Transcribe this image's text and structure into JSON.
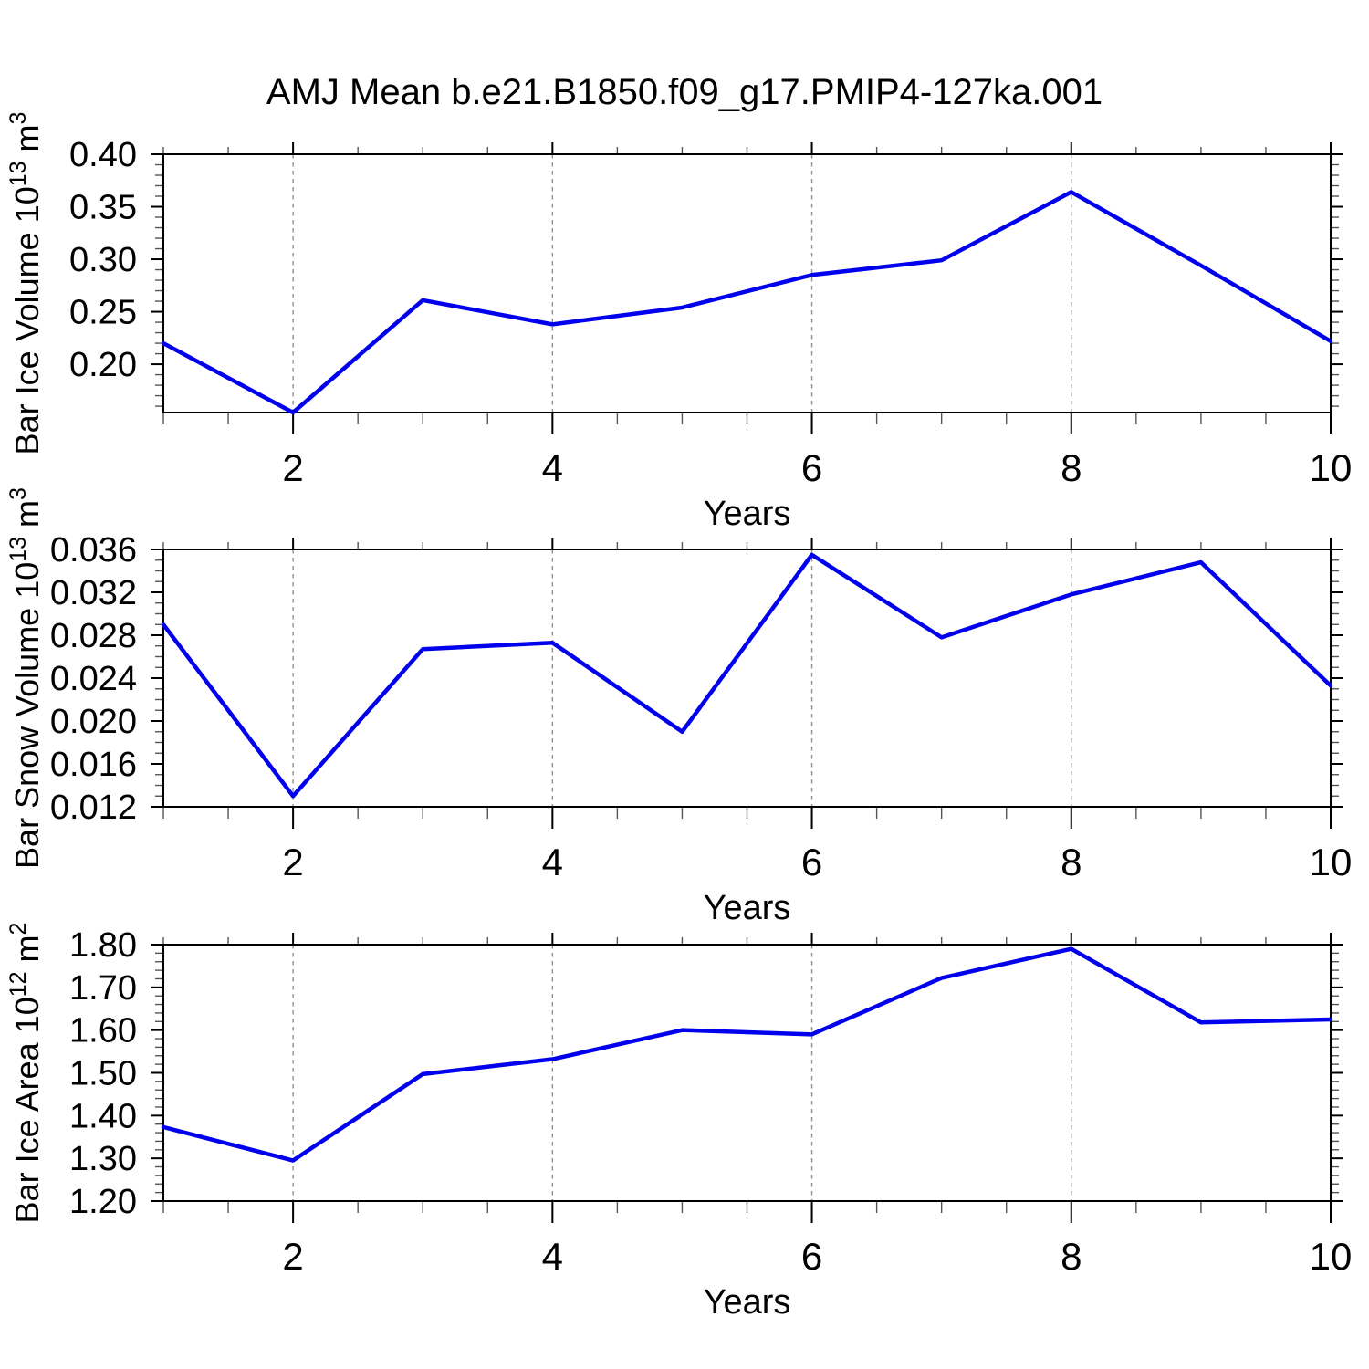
{
  "title": "AMJ Mean b.e21.B1850.f09_g17.PMIP4-127ka.001",
  "line_color": "#0000ee",
  "grid_color": "#909090",
  "axis_color": "#000000",
  "chart_data": [
    {
      "type": "line",
      "name": "ice-volume",
      "ylabel_text": "Bar Ice Volume 10^13 m^3",
      "ylabel_parts": [
        [
          "t",
          "Bar Ice Volume 10"
        ],
        [
          "s",
          "13"
        ],
        [
          "t",
          " m"
        ],
        [
          "s",
          "3"
        ]
      ],
      "xlabel": "Years",
      "x": [
        1,
        2,
        3,
        4,
        5,
        6,
        7,
        8,
        9,
        10
      ],
      "values": [
        0.22,
        0.154,
        0.261,
        0.238,
        0.254,
        0.285,
        0.299,
        0.364,
        0.294,
        0.222
      ],
      "xlim": [
        1,
        10
      ],
      "ylim": [
        0.154,
        0.4
      ],
      "yticks": {
        "values": [
          0.2,
          0.25,
          0.3,
          0.35,
          0.4
        ],
        "labels": [
          "0.20",
          "0.25",
          "0.30",
          "0.35",
          "0.40"
        ]
      },
      "yminor_step": 0.01,
      "xticks": {
        "values": [
          2,
          4,
          6,
          8,
          10
        ],
        "labels": [
          "2",
          "4",
          "6",
          "8",
          "10"
        ]
      },
      "xminor_step": 0.5,
      "grid_x": [
        2,
        4,
        6,
        8
      ],
      "grid_on": true,
      "legend": "none"
    },
    {
      "type": "line",
      "name": "snow-volume",
      "ylabel_text": "Bar Snow Volume 10^13 m^3",
      "ylabel_parts": [
        [
          "t",
          "Bar Snow Volume 10"
        ],
        [
          "s",
          "13"
        ],
        [
          "t",
          " m"
        ],
        [
          "s",
          "3"
        ]
      ],
      "xlabel": "Years",
      "x": [
        1,
        2,
        3,
        4,
        5,
        6,
        7,
        8,
        9,
        10
      ],
      "values": [
        0.029,
        0.013,
        0.0267,
        0.0273,
        0.019,
        0.0355,
        0.0278,
        0.0318,
        0.0348,
        0.0233
      ],
      "xlim": [
        1,
        10
      ],
      "ylim": [
        0.012,
        0.036
      ],
      "yticks": {
        "values": [
          0.012,
          0.016,
          0.02,
          0.024,
          0.028,
          0.032,
          0.036
        ],
        "labels": [
          "0.012",
          "0.016",
          "0.020",
          "0.024",
          "0.028",
          "0.032",
          "0.036"
        ]
      },
      "yminor_step": 0.001,
      "xticks": {
        "values": [
          2,
          4,
          6,
          8,
          10
        ],
        "labels": [
          "2",
          "4",
          "6",
          "8",
          "10"
        ]
      },
      "xminor_step": 0.5,
      "grid_x": [
        2,
        4,
        6,
        8
      ],
      "grid_on": true,
      "legend": "none"
    },
    {
      "type": "line",
      "name": "ice-area",
      "ylabel_text": "Bar Ice Area 10^12 m^2",
      "ylabel_parts": [
        [
          "t",
          "Bar Ice Area 10"
        ],
        [
          "s",
          "12"
        ],
        [
          "t",
          " m"
        ],
        [
          "s",
          "2"
        ]
      ],
      "xlabel": "Years",
      "x": [
        1,
        2,
        3,
        4,
        5,
        6,
        7,
        8,
        9,
        10
      ],
      "values": [
        1.373,
        1.295,
        1.497,
        1.532,
        1.6,
        1.59,
        1.722,
        1.79,
        1.618,
        1.625
      ],
      "xlim": [
        1,
        10
      ],
      "ylim": [
        1.2,
        1.8
      ],
      "yticks": {
        "values": [
          1.2,
          1.3,
          1.4,
          1.5,
          1.6,
          1.7,
          1.8
        ],
        "labels": [
          "1.20",
          "1.30",
          "1.40",
          "1.50",
          "1.60",
          "1.70",
          "1.80"
        ]
      },
      "yminor_step": 0.02,
      "xticks": {
        "values": [
          2,
          4,
          6,
          8,
          10
        ],
        "labels": [
          "2",
          "4",
          "6",
          "8",
          "10"
        ]
      },
      "xminor_step": 0.5,
      "grid_x": [
        2,
        4,
        6,
        8
      ],
      "grid_on": true,
      "legend": "none"
    }
  ]
}
